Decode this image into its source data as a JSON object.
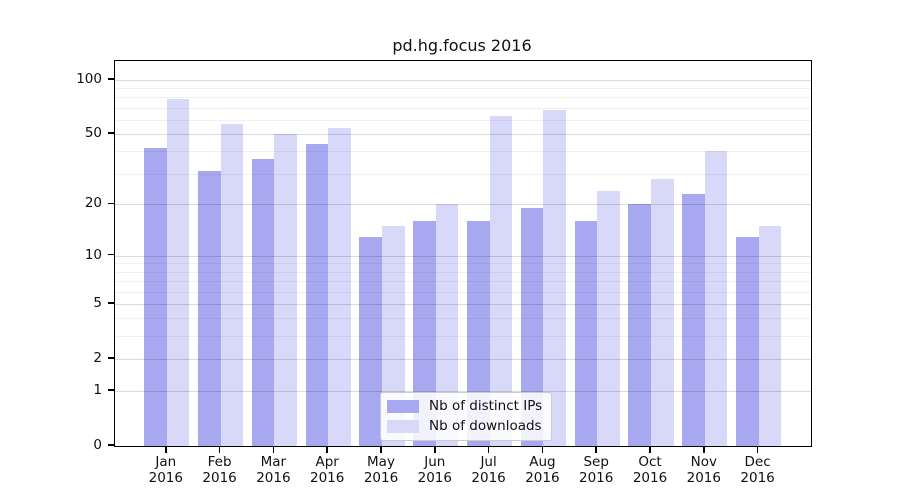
{
  "title": "pd.hg.focus 2016",
  "colors": {
    "distinct_ips": "#a8a8f0",
    "downloads": "#d8d8f8",
    "grid_major": "rgba(0,0,0,0.14)",
    "grid_minor": "rgba(0,0,0,0.055)",
    "axis": "#000000"
  },
  "legend": {
    "items": [
      {
        "label": "Nb of distinct IPs",
        "color": "#a8a8f0"
      },
      {
        "label": "Nb of downloads",
        "color": "#d8d8f8"
      }
    ]
  },
  "chart_data": {
    "type": "bar",
    "title": "pd.hg.focus 2016",
    "categories": [
      "Jan",
      "Feb",
      "Mar",
      "Apr",
      "May",
      "Jun",
      "Jul",
      "Aug",
      "Sep",
      "Oct",
      "Nov",
      "Dec"
    ],
    "year_label": "2016",
    "series": [
      {
        "name": "Nb of distinct IPs",
        "color": "#a8a8f0",
        "values": [
          42,
          31,
          36,
          44,
          13,
          16,
          16,
          19,
          16,
          20,
          23,
          13
        ]
      },
      {
        "name": "Nb of downloads",
        "color": "#d8d8f8",
        "values": [
          78,
          57,
          50,
          54,
          15,
          20,
          63,
          68,
          24,
          28,
          40,
          15
        ]
      }
    ],
    "xlabel": "",
    "ylabel": "",
    "yscale": "log1p",
    "yticks": [
      0,
      1,
      2,
      5,
      10,
      20,
      50,
      100
    ],
    "minor_yticks": [
      3,
      4,
      6,
      7,
      8,
      9,
      30,
      40,
      60,
      70,
      80,
      90
    ],
    "ylim": [
      0,
      127
    ],
    "grid": true,
    "legend_position": "lower center"
  }
}
